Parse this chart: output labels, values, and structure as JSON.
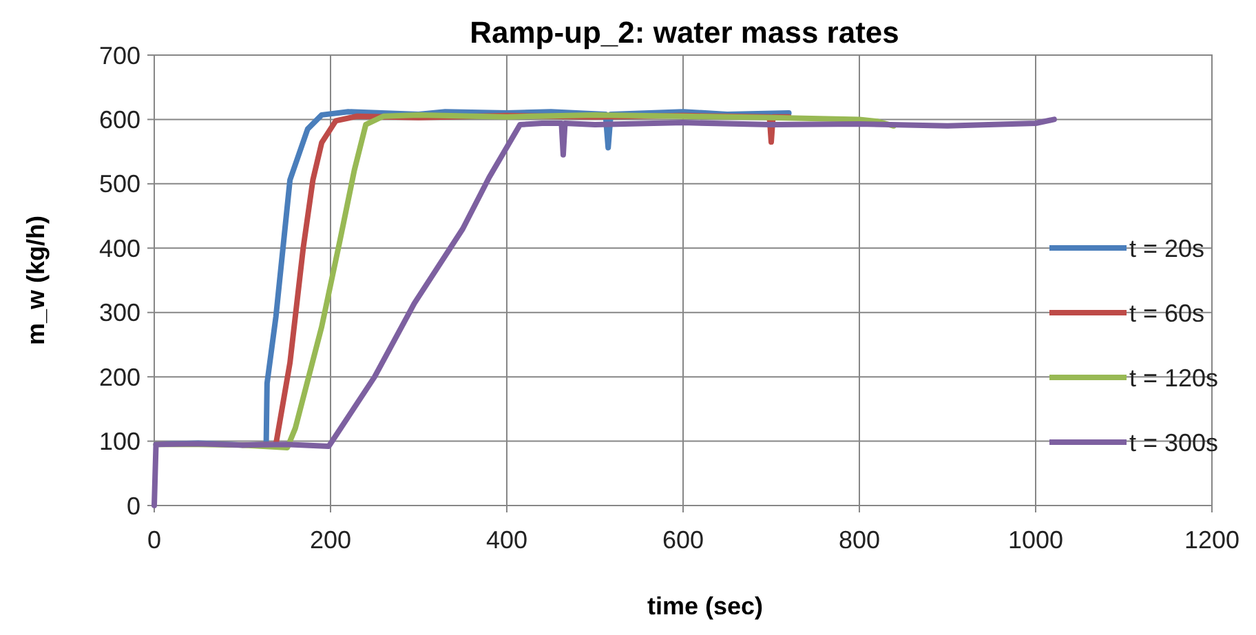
{
  "chart_data": {
    "type": "line",
    "title": "Ramp-up_2: water mass rates",
    "xlabel": "time (sec)",
    "ylabel": "m_w (kg/h)",
    "xlim": [
      0,
      1200
    ],
    "xticks": [
      0,
      200,
      400,
      600,
      800,
      1000,
      1200
    ],
    "ylim": [
      0,
      700
    ],
    "yticks": [
      0,
      100,
      200,
      300,
      400,
      500,
      600,
      700
    ],
    "grid": true,
    "legend": "right",
    "marker": "none",
    "line_style": "solid",
    "series": [
      {
        "name": "t = 20s",
        "color": "#4a7ebb",
        "x": [
          2,
          50,
          100,
          127,
          128,
          138,
          154,
          174,
          190,
          220,
          300,
          330,
          400,
          450,
          512,
          515,
          518,
          600,
          650,
          720
        ],
        "values": [
          95,
          97,
          94,
          95,
          190,
          293,
          506,
          585,
          607,
          612,
          608,
          612,
          610,
          612,
          608,
          556,
          608,
          612,
          608,
          610
        ]
      },
      {
        "name": "t = 60s",
        "color": "#be4b48",
        "x": [
          100,
          138,
          154,
          169,
          180,
          190,
          206,
          230,
          300,
          400,
          500,
          600,
          698,
          700,
          702,
          720
        ],
        "values": [
          94,
          95,
          222,
          400,
          506,
          564,
          598,
          605,
          603,
          606,
          604,
          606,
          604,
          565,
          604,
          604
        ]
      },
      {
        "name": "t = 120s",
        "color": "#98b954",
        "x": [
          2,
          50,
          100,
          151,
          160,
          190,
          211,
          227,
          240,
          260,
          300,
          400,
          500,
          600,
          700,
          800,
          820,
          839
        ],
        "values": [
          95,
          95,
          94,
          90,
          120,
          278,
          414,
          521,
          592,
          605,
          607,
          604,
          607,
          605,
          603,
          600,
          597,
          590
        ]
      },
      {
        "name": "t = 300s",
        "color": "#7d60a0",
        "x": [
          0,
          2,
          50,
          100,
          150,
          198,
          250,
          295,
          350,
          380,
          415,
          440,
          462,
          464,
          466,
          500,
          600,
          700,
          800,
          900,
          1000,
          1021
        ],
        "values": [
          0,
          95,
          96,
          94,
          95,
          92,
          200,
          314,
          430,
          510,
          592,
          594,
          594,
          545,
          594,
          592,
          595,
          592,
          593,
          590,
          594,
          600
        ]
      }
    ]
  }
}
